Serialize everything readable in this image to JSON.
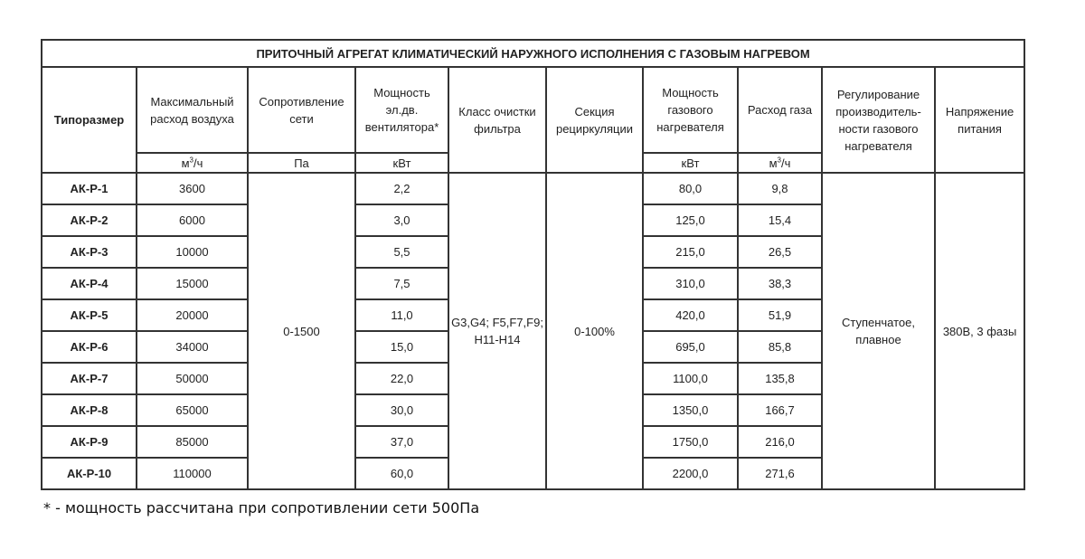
{
  "title": "ПРИТОЧНЫЙ АГРЕГАТ КЛИМАТИЧЕСКИЙ НАРУЖНОГО ИСПОЛНЕНИЯ С ГАЗОВЫМ НАГРЕВОМ",
  "headers": [
    "Типоразмер",
    "Максимальный расход воздуха",
    "Сопротивление сети",
    "Мощность эл.дв. вентилятора*",
    "Класс очистки фильтра",
    "Секция рециркуляции",
    "Мощность газового нагревателя",
    "Расход газа",
    "Регулирование производитель-ности газового нагревателя",
    "Напряжение питания"
  ],
  "units": {
    "airflow_base": "м",
    "airflow_sup": "3",
    "airflow_tail": "/ч",
    "pressure": "Па",
    "fan_power": "кВт",
    "heater_power": "кВт",
    "gas_base": "м",
    "gas_sup": "3",
    "gas_tail": "/ч"
  },
  "shared": {
    "pressure": "0-1500",
    "filter": "G3,G4; F5,F7,F9; H11-H14",
    "recirculation": "0-100%",
    "regulation": "Ступенчатое, плавное",
    "voltage": "380В, 3 фазы"
  },
  "rows": [
    {
      "model": "АК-Р-1",
      "airflow": "3600",
      "fan_power": "2,2",
      "heater_power": "80,0",
      "gas": "9,8"
    },
    {
      "model": "АК-Р-2",
      "airflow": "6000",
      "fan_power": "3,0",
      "heater_power": "125,0",
      "gas": "15,4"
    },
    {
      "model": "АК-Р-3",
      "airflow": "10000",
      "fan_power": "5,5",
      "heater_power": "215,0",
      "gas": "26,5"
    },
    {
      "model": "АК-Р-4",
      "airflow": "15000",
      "fan_power": "7,5",
      "heater_power": "310,0",
      "gas": "38,3"
    },
    {
      "model": "АК-Р-5",
      "airflow": "20000",
      "fan_power": "11,0",
      "heater_power": "420,0",
      "gas": "51,9"
    },
    {
      "model": "АК-Р-6",
      "airflow": "34000",
      "fan_power": "15,0",
      "heater_power": "695,0",
      "gas": "85,8"
    },
    {
      "model": "АК-Р-7",
      "airflow": "50000",
      "fan_power": "22,0",
      "heater_power": "1100,0",
      "gas": "135,8"
    },
    {
      "model": "АК-Р-8",
      "airflow": "65000",
      "fan_power": "30,0",
      "heater_power": "1350,0",
      "gas": "166,7"
    },
    {
      "model": "АК-Р-9",
      "airflow": "85000",
      "fan_power": "37,0",
      "heater_power": "1750,0",
      "gas": "216,0"
    },
    {
      "model": "АК-Р-10",
      "airflow": "110000",
      "fan_power": "60,0",
      "heater_power": "2200,0",
      "gas": "271,6"
    }
  ],
  "footnote": "* - мощность рассчитана при сопротивлении сети 500Па"
}
